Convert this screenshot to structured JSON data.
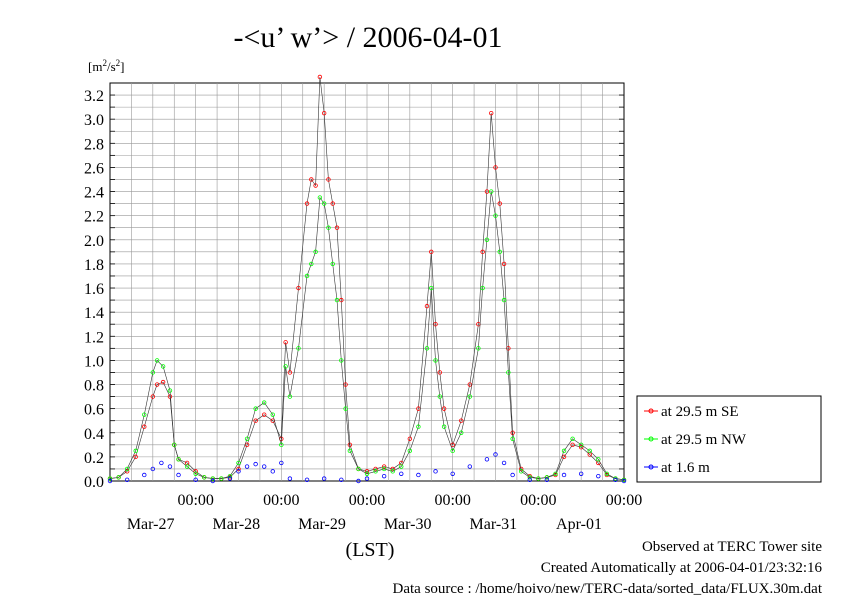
{
  "chart_data": {
    "type": "line",
    "title": "-<u’ w’> / 2006-04-01",
    "ylabel": "[m2/s2]",
    "xlabel": "(LST)",
    "ylim": [
      0,
      3.3
    ],
    "xlim_days": [
      0,
      6.0
    ],
    "y_ticks": [
      "0.0",
      "0.2",
      "0.4",
      "0.6",
      "0.8",
      "1.0",
      "1.2",
      "1.4",
      "1.6",
      "1.8",
      "2.0",
      "2.2",
      "2.4",
      "2.6",
      "2.8",
      "3.0",
      "3.2"
    ],
    "x_tick_time": "00:00",
    "x_tick_dates": [
      "Mar-27",
      "Mar-28",
      "Mar-29",
      "Mar-30",
      "Mar-31",
      "Apr-01"
    ],
    "grid": true,
    "legend_position": "right",
    "series": [
      {
        "name": "at 29.5 m SE",
        "color": "#ff0000",
        "points": [
          [
            0.0,
            0.02
          ],
          [
            0.1,
            0.03
          ],
          [
            0.2,
            0.08
          ],
          [
            0.3,
            0.2
          ],
          [
            0.4,
            0.45
          ],
          [
            0.5,
            0.7
          ],
          [
            0.55,
            0.8
          ],
          [
            0.62,
            0.82
          ],
          [
            0.7,
            0.7
          ],
          [
            0.75,
            0.3
          ],
          [
            0.8,
            0.18
          ],
          [
            0.9,
            0.15
          ],
          [
            1.0,
            0.08
          ],
          [
            1.1,
            0.03
          ],
          [
            1.2,
            0.02
          ],
          [
            1.3,
            0.02
          ],
          [
            1.4,
            0.03
          ],
          [
            1.5,
            0.1
          ],
          [
            1.6,
            0.3
          ],
          [
            1.7,
            0.5
          ],
          [
            1.8,
            0.55
          ],
          [
            1.9,
            0.5
          ],
          [
            2.0,
            0.35
          ],
          [
            2.05,
            1.15
          ],
          [
            2.1,
            0.9
          ],
          [
            2.2,
            1.6
          ],
          [
            2.3,
            2.3
          ],
          [
            2.35,
            2.5
          ],
          [
            2.4,
            2.45
          ],
          [
            2.45,
            3.35
          ],
          [
            2.5,
            3.05
          ],
          [
            2.55,
            2.5
          ],
          [
            2.6,
            2.3
          ],
          [
            2.65,
            2.1
          ],
          [
            2.7,
            1.5
          ],
          [
            2.75,
            0.8
          ],
          [
            2.8,
            0.3
          ],
          [
            2.9,
            0.1
          ],
          [
            3.0,
            0.08
          ],
          [
            3.1,
            0.1
          ],
          [
            3.2,
            0.12
          ],
          [
            3.3,
            0.1
          ],
          [
            3.4,
            0.15
          ],
          [
            3.5,
            0.35
          ],
          [
            3.6,
            0.6
          ],
          [
            3.7,
            1.45
          ],
          [
            3.75,
            1.9
          ],
          [
            3.8,
            1.3
          ],
          [
            3.85,
            0.9
          ],
          [
            3.9,
            0.6
          ],
          [
            4.0,
            0.3
          ],
          [
            4.1,
            0.5
          ],
          [
            4.2,
            0.8
          ],
          [
            4.3,
            1.3
          ],
          [
            4.35,
            1.9
          ],
          [
            4.4,
            2.4
          ],
          [
            4.45,
            3.05
          ],
          [
            4.5,
            2.6
          ],
          [
            4.55,
            2.3
          ],
          [
            4.6,
            1.8
          ],
          [
            4.65,
            1.1
          ],
          [
            4.7,
            0.4
          ],
          [
            4.8,
            0.1
          ],
          [
            4.9,
            0.04
          ],
          [
            5.0,
            0.02
          ],
          [
            5.1,
            0.03
          ],
          [
            5.2,
            0.05
          ],
          [
            5.3,
            0.2
          ],
          [
            5.4,
            0.3
          ],
          [
            5.5,
            0.28
          ],
          [
            5.6,
            0.22
          ],
          [
            5.7,
            0.15
          ],
          [
            5.8,
            0.05
          ],
          [
            5.9,
            0.02
          ],
          [
            6.0,
            0.01
          ]
        ]
      },
      {
        "name": "at 29.5 m NW",
        "color": "#00ff00",
        "points": [
          [
            0.0,
            0.02
          ],
          [
            0.1,
            0.03
          ],
          [
            0.2,
            0.1
          ],
          [
            0.3,
            0.25
          ],
          [
            0.4,
            0.55
          ],
          [
            0.5,
            0.9
          ],
          [
            0.55,
            1.0
          ],
          [
            0.62,
            0.95
          ],
          [
            0.7,
            0.75
          ],
          [
            0.75,
            0.3
          ],
          [
            0.8,
            0.18
          ],
          [
            0.9,
            0.12
          ],
          [
            1.0,
            0.06
          ],
          [
            1.1,
            0.03
          ],
          [
            1.2,
            0.02
          ],
          [
            1.3,
            0.02
          ],
          [
            1.4,
            0.04
          ],
          [
            1.5,
            0.15
          ],
          [
            1.6,
            0.35
          ],
          [
            1.7,
            0.6
          ],
          [
            1.8,
            0.65
          ],
          [
            1.9,
            0.55
          ],
          [
            2.0,
            0.3
          ],
          [
            2.05,
            0.95
          ],
          [
            2.1,
            0.7
          ],
          [
            2.2,
            1.1
          ],
          [
            2.3,
            1.7
          ],
          [
            2.35,
            1.8
          ],
          [
            2.4,
            1.9
          ],
          [
            2.45,
            2.35
          ],
          [
            2.5,
            2.3
          ],
          [
            2.55,
            2.1
          ],
          [
            2.6,
            1.8
          ],
          [
            2.65,
            1.5
          ],
          [
            2.7,
            1.0
          ],
          [
            2.75,
            0.6
          ],
          [
            2.8,
            0.25
          ],
          [
            2.9,
            0.1
          ],
          [
            3.0,
            0.06
          ],
          [
            3.1,
            0.08
          ],
          [
            3.2,
            0.1
          ],
          [
            3.3,
            0.08
          ],
          [
            3.4,
            0.12
          ],
          [
            3.5,
            0.25
          ],
          [
            3.6,
            0.45
          ],
          [
            3.7,
            1.1
          ],
          [
            3.75,
            1.6
          ],
          [
            3.8,
            1.0
          ],
          [
            3.85,
            0.7
          ],
          [
            3.9,
            0.45
          ],
          [
            4.0,
            0.25
          ],
          [
            4.1,
            0.4
          ],
          [
            4.2,
            0.7
          ],
          [
            4.3,
            1.1
          ],
          [
            4.35,
            1.6
          ],
          [
            4.4,
            2.0
          ],
          [
            4.45,
            2.4
          ],
          [
            4.5,
            2.2
          ],
          [
            4.55,
            1.9
          ],
          [
            4.6,
            1.5
          ],
          [
            4.65,
            0.9
          ],
          [
            4.7,
            0.35
          ],
          [
            4.8,
            0.08
          ],
          [
            4.9,
            0.03
          ],
          [
            5.0,
            0.02
          ],
          [
            5.1,
            0.03
          ],
          [
            5.2,
            0.06
          ],
          [
            5.3,
            0.25
          ],
          [
            5.4,
            0.35
          ],
          [
            5.5,
            0.3
          ],
          [
            5.6,
            0.25
          ],
          [
            5.7,
            0.18
          ],
          [
            5.8,
            0.06
          ],
          [
            5.9,
            0.02
          ],
          [
            6.0,
            0.01
          ]
        ]
      },
      {
        "name": "at 1.6 m",
        "color": "#0000ff",
        "points": [
          [
            0.0,
            0.0
          ],
          [
            0.2,
            0.01
          ],
          [
            0.4,
            0.05
          ],
          [
            0.5,
            0.1
          ],
          [
            0.6,
            0.15
          ],
          [
            0.7,
            0.12
          ],
          [
            0.8,
            0.05
          ],
          [
            1.0,
            0.01
          ],
          [
            1.2,
            0.0
          ],
          [
            1.4,
            0.02
          ],
          [
            1.5,
            0.08
          ],
          [
            1.6,
            0.12
          ],
          [
            1.7,
            0.14
          ],
          [
            1.8,
            0.12
          ],
          [
            1.9,
            0.08
          ],
          [
            2.0,
            0.15
          ],
          [
            2.1,
            0.02
          ],
          [
            2.3,
            0.01
          ],
          [
            2.5,
            0.02
          ],
          [
            2.7,
            0.01
          ],
          [
            2.9,
            0.0
          ],
          [
            3.0,
            0.02
          ],
          [
            3.2,
            0.04
          ],
          [
            3.4,
            0.06
          ],
          [
            3.6,
            0.05
          ],
          [
            3.8,
            0.08
          ],
          [
            4.0,
            0.06
          ],
          [
            4.2,
            0.12
          ],
          [
            4.4,
            0.18
          ],
          [
            4.5,
            0.22
          ],
          [
            4.6,
            0.15
          ],
          [
            4.7,
            0.05
          ],
          [
            4.9,
            0.01
          ],
          [
            5.1,
            0.01
          ],
          [
            5.3,
            0.05
          ],
          [
            5.5,
            0.06
          ],
          [
            5.7,
            0.04
          ],
          [
            5.9,
            0.01
          ],
          [
            6.0,
            0.0
          ]
        ]
      }
    ]
  },
  "footer": {
    "line1": "Observed at TERC Tower site",
    "line2": "Created Automatically at 2006-04-01/23:32:16",
    "line3": "Data source : /home/hoivo/new/TERC-data/sorted_data/FLUX.30m.dat"
  }
}
